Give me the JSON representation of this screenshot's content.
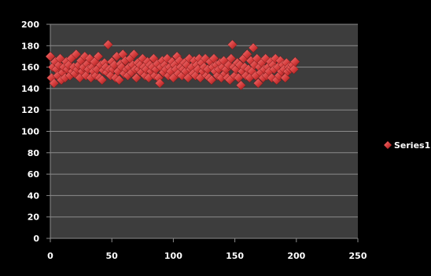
{
  "chart_data": {
    "type": "scatter",
    "title": "",
    "xlabel": "",
    "ylabel": "",
    "xlim": [
      0,
      250
    ],
    "ylim": [
      0,
      200
    ],
    "x_ticks": [
      0,
      50,
      100,
      150,
      200,
      250
    ],
    "y_ticks": [
      0,
      20,
      40,
      60,
      80,
      100,
      120,
      140,
      160,
      180,
      200
    ],
    "grid": "horizontal",
    "legend_position": "right",
    "colors": {
      "background": "#000000",
      "plot_area": "#3d3d3d",
      "gridline": "#8c8c8c",
      "marker": "#d43a3a",
      "text": "#ffffff"
    },
    "series": [
      {
        "name": "Series1",
        "marker": "diamond",
        "points": [
          [
            0,
            170
          ],
          [
            1,
            150
          ],
          [
            2,
            160
          ],
          [
            3,
            145
          ],
          [
            4,
            165
          ],
          [
            5,
            158
          ],
          [
            6,
            152
          ],
          [
            7,
            162
          ],
          [
            8,
            168
          ],
          [
            9,
            148
          ],
          [
            10,
            155
          ],
          [
            11,
            160
          ],
          [
            12,
            150
          ],
          [
            13,
            165
          ],
          [
            14,
            158
          ],
          [
            15,
            162
          ],
          [
            16,
            152
          ],
          [
            17,
            168
          ],
          [
            18,
            156
          ],
          [
            19,
            160
          ],
          [
            20,
            154
          ],
          [
            21,
            172
          ],
          [
            22,
            158
          ],
          [
            23,
            162
          ],
          [
            24,
            150
          ],
          [
            25,
            166
          ],
          [
            26,
            156
          ],
          [
            27,
            160
          ],
          [
            28,
            170
          ],
          [
            29,
            152
          ],
          [
            30,
            163
          ],
          [
            31,
            158
          ],
          [
            32,
            168
          ],
          [
            33,
            150
          ],
          [
            34,
            160
          ],
          [
            35,
            156
          ],
          [
            36,
            165
          ],
          [
            37,
            152
          ],
          [
            38,
            158
          ],
          [
            39,
            170
          ],
          [
            40,
            150
          ],
          [
            41,
            162
          ],
          [
            42,
            148
          ],
          [
            43,
            157
          ],
          [
            44,
            164
          ],
          [
            45,
            160
          ],
          [
            46,
            155
          ],
          [
            47,
            181
          ],
          [
            48,
            158
          ],
          [
            49,
            152
          ],
          [
            50,
            165
          ],
          [
            51,
            158
          ],
          [
            52,
            162
          ],
          [
            53,
            150
          ],
          [
            54,
            170
          ],
          [
            55,
            156
          ],
          [
            56,
            148
          ],
          [
            57,
            163
          ],
          [
            58,
            160
          ],
          [
            59,
            172
          ],
          [
            60,
            154
          ],
          [
            61,
            166
          ],
          [
            62,
            158
          ],
          [
            63,
            152
          ],
          [
            64,
            160
          ],
          [
            65,
            168
          ],
          [
            66,
            155
          ],
          [
            67,
            162
          ],
          [
            68,
            172
          ],
          [
            69,
            158
          ],
          [
            70,
            150
          ],
          [
            71,
            164
          ],
          [
            72,
            158
          ],
          [
            73,
            162
          ],
          [
            74,
            155
          ],
          [
            75,
            168
          ],
          [
            76,
            160
          ],
          [
            77,
            152
          ],
          [
            78,
            158
          ],
          [
            79,
            165
          ],
          [
            80,
            150
          ],
          [
            81,
            162
          ],
          [
            82,
            156
          ],
          [
            83,
            160
          ],
          [
            84,
            168
          ],
          [
            85,
            152
          ],
          [
            86,
            158
          ],
          [
            87,
            163
          ],
          [
            88,
            150
          ],
          [
            89,
            145
          ],
          [
            90,
            160
          ],
          [
            91,
            166
          ],
          [
            92,
            155
          ],
          [
            93,
            162
          ],
          [
            94,
            158
          ],
          [
            95,
            168
          ],
          [
            96,
            152
          ],
          [
            97,
            160
          ],
          [
            98,
            156
          ],
          [
            99,
            165
          ],
          [
            100,
            150
          ],
          [
            101,
            162
          ],
          [
            102,
            158
          ],
          [
            103,
            170
          ],
          [
            104,
            154
          ],
          [
            105,
            166
          ],
          [
            106,
            160
          ],
          [
            107,
            152
          ],
          [
            108,
            158
          ],
          [
            109,
            164
          ],
          [
            110,
            156
          ],
          [
            111,
            162
          ],
          [
            112,
            150
          ],
          [
            113,
            168
          ],
          [
            114,
            158
          ],
          [
            115,
            160
          ],
          [
            116,
            154
          ],
          [
            117,
            166
          ],
          [
            118,
            152
          ],
          [
            119,
            162
          ],
          [
            120,
            158
          ],
          [
            121,
            168
          ],
          [
            122,
            150
          ],
          [
            123,
            164
          ],
          [
            124,
            156
          ],
          [
            125,
            160
          ],
          [
            126,
            168
          ],
          [
            127,
            152
          ],
          [
            128,
            158
          ],
          [
            129,
            150
          ],
          [
            130,
            165
          ],
          [
            131,
            148
          ],
          [
            132,
            160
          ],
          [
            133,
            168
          ],
          [
            134,
            156
          ],
          [
            135,
            162
          ],
          [
            136,
            152
          ],
          [
            137,
            158
          ],
          [
            138,
            164
          ],
          [
            139,
            150
          ],
          [
            140,
            160
          ],
          [
            141,
            166
          ],
          [
            142,
            154
          ],
          [
            143,
            158
          ],
          [
            144,
            150
          ],
          [
            145,
            162
          ],
          [
            146,
            148
          ],
          [
            147,
            168
          ],
          [
            148,
            181
          ],
          [
            149,
            160
          ],
          [
            150,
            152
          ],
          [
            151,
            158
          ],
          [
            152,
            164
          ],
          [
            153,
            150
          ],
          [
            154,
            162
          ],
          [
            155,
            143
          ],
          [
            156,
            156
          ],
          [
            157,
            168
          ],
          [
            158,
            160
          ],
          [
            159,
            152
          ],
          [
            160,
            172
          ],
          [
            161,
            158
          ],
          [
            162,
            150
          ],
          [
            163,
            166
          ],
          [
            164,
            156
          ],
          [
            165,
            178
          ],
          [
            166,
            162
          ],
          [
            167,
            152
          ],
          [
            168,
            168
          ],
          [
            169,
            145
          ],
          [
            170,
            160
          ],
          [
            171,
            155
          ],
          [
            172,
            164
          ],
          [
            173,
            150
          ],
          [
            174,
            158
          ],
          [
            175,
            168
          ],
          [
            176,
            152
          ],
          [
            177,
            160
          ],
          [
            178,
            156
          ],
          [
            179,
            165
          ],
          [
            180,
            150
          ],
          [
            181,
            162
          ],
          [
            182,
            158
          ],
          [
            183,
            168
          ],
          [
            184,
            148
          ],
          [
            185,
            160
          ],
          [
            186,
            152
          ],
          [
            187,
            166
          ],
          [
            188,
            156
          ],
          [
            189,
            162
          ],
          [
            190,
            158
          ],
          [
            191,
            150
          ],
          [
            192,
            164
          ],
          [
            193,
            156
          ],
          [
            194,
            160
          ],
          [
            195,
            158
          ],
          [
            196,
            160
          ],
          [
            197,
            162
          ],
          [
            198,
            158
          ],
          [
            199,
            165
          ]
        ]
      }
    ]
  }
}
